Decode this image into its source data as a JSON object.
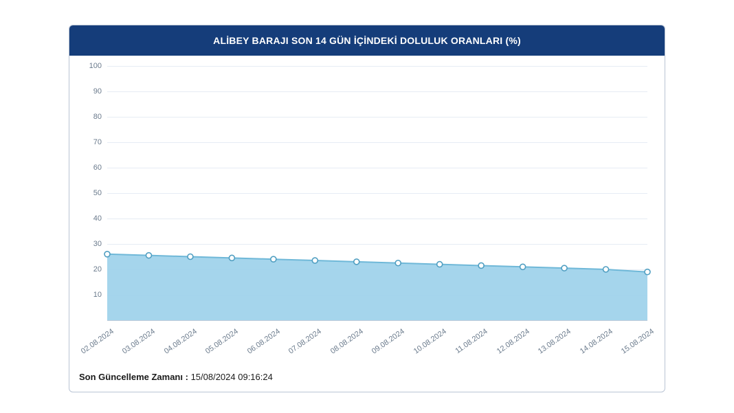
{
  "chart": {
    "type": "area",
    "title": "ALİBEY BARAJI SON 14 GÜN İÇİNDEKİ DOLULUK ORANLARI (%)",
    "title_bg_color": "#153d7a",
    "title_text_color": "#ffffff",
    "title_fontsize": 14,
    "background_color": "#ffffff",
    "grid_color": "#e6ecf4",
    "baseline_color": "#c2ccda",
    "axis_label_color": "#6a7a8c",
    "axis_label_fontsize": 11,
    "line_color": "#6fb8d8",
    "line_width": 2,
    "area_fill_color": "#a0d3eb",
    "area_fill_opacity": 0.95,
    "marker_style": "circle",
    "marker_radius": 4,
    "marker_fill_color": "#ffffff",
    "marker_stroke_color": "#4f9ec1",
    "marker_stroke_width": 1.6,
    "ylim": [
      0,
      100
    ],
    "ytick_step": 10,
    "x_labels": [
      "02.08.2024",
      "03.08.2024",
      "04.08.2024",
      "05.08.2024",
      "06.08.2024",
      "07.08.2024",
      "08.08.2024",
      "09.08.2024",
      "10.08.2024",
      "11.08.2024",
      "12.08.2024",
      "13.08.2024",
      "14.08.2024",
      "15.08.2024"
    ],
    "values": [
      26,
      25.5,
      25,
      24.5,
      24,
      23.5,
      23,
      22.5,
      22,
      21.5,
      21,
      20.5,
      20,
      19
    ],
    "x_label_rotation_deg": -35
  },
  "footer": {
    "label": "Son Güncelleme Zamanı :",
    "value": "15/08/2024 09:16:24",
    "text_color": "#1a1a1a",
    "fontsize": 13
  },
  "card_border_color": "#b9c4d4"
}
